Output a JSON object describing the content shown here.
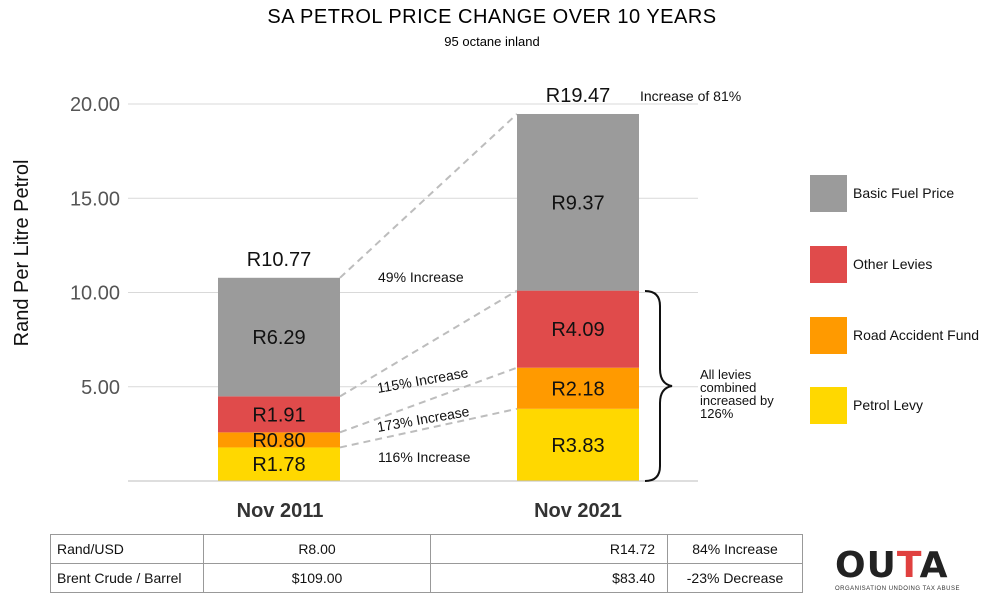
{
  "chart_data": {
    "type": "bar",
    "stacked": true,
    "title": "SA PETROL PRICE CHANGE OVER 10 YEARS",
    "subtitle": "95 octane inland",
    "ylabel": "Rand Per Litre Petrol",
    "ylim": [
      0,
      20
    ],
    "yticks": [
      "5.00",
      "10.00",
      "15.00",
      "20.00"
    ],
    "ytick_values": [
      5,
      10,
      15,
      20
    ],
    "grid": true,
    "categories": [
      "Nov 2011",
      "Nov 2021"
    ],
    "series": [
      {
        "name": "Petrol Levy",
        "values": [
          1.78,
          3.83
        ],
        "labels": [
          "R1.78",
          "R3.83"
        ],
        "color": "#ffd800"
      },
      {
        "name": "Road Accident Fund",
        "values": [
          0.8,
          2.18
        ],
        "labels": [
          "R0.80",
          "R2.18"
        ],
        "color": "#ff9a00"
      },
      {
        "name": "Other Levies",
        "values": [
          1.91,
          4.09
        ],
        "labels": [
          "R1.91",
          "R4.09"
        ],
        "color": "#e04b4b"
      },
      {
        "name": "Basic Fuel Price",
        "values": [
          6.29,
          9.37
        ],
        "labels": [
          "R6.29",
          "R9.37"
        ],
        "color": "#9b9b9b"
      }
    ],
    "totals": [
      "R10.77",
      "R19.47"
    ],
    "annotations": {
      "total_increase": "Increase of 81%",
      "basic_fuel": "49% Increase",
      "other_levies": "115% Increase",
      "raf": "173% Increase",
      "petrol_levy": "116% Increase",
      "all_levies": [
        "All levies",
        "combined",
        "increased by",
        "126%"
      ]
    },
    "legend": {
      "position": "right",
      "items": [
        {
          "name": "Basic Fuel Price",
          "color": "#9b9b9b"
        },
        {
          "name": "Other Levies",
          "color": "#e04b4b"
        },
        {
          "name": "Road Accident Fund",
          "color": "#ff9a00"
        },
        {
          "name": "Petrol Levy",
          "color": "#ffd800"
        }
      ]
    }
  },
  "table": {
    "rows": [
      {
        "label": "Rand/USD",
        "v2011": "R8.00",
        "v2021": "R14.72",
        "change": "84% Increase"
      },
      {
        "label": "Brent Crude / Barrel",
        "v2011": "$109.00",
        "v2021": "$83.40",
        "change": "-23% Decrease"
      }
    ]
  },
  "logo": {
    "word_main": "OU",
    "word_accent": "T",
    "word_end": "A",
    "tagline": "ORGANISATION UNDOING TAX ABUSE"
  }
}
